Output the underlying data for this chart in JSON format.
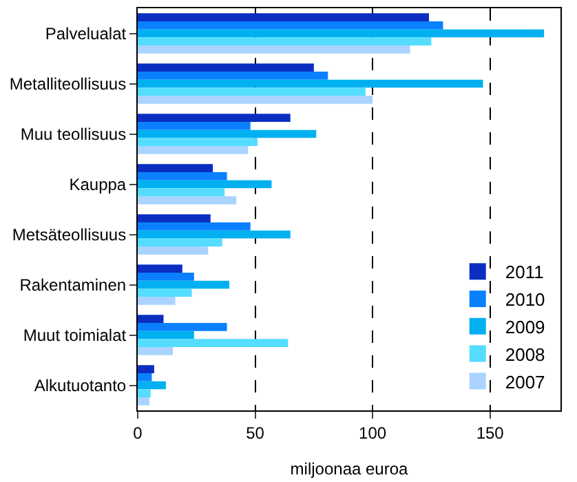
{
  "chart_data": {
    "type": "bar",
    "orientation": "horizontal",
    "xlabel": "miljoonaa euroa",
    "categories": [
      "Palvelualat",
      "Metalliteollisuus",
      "Muu teollisuus",
      "Kauppa",
      "Metsäteollisuus",
      "Rakentaminen",
      "Muut toimialat",
      "Alkutuotanto"
    ],
    "series": [
      {
        "name": "2011",
        "color": "#0a2fc0",
        "values": [
          124,
          75,
          65,
          32,
          31,
          19,
          11,
          7
        ]
      },
      {
        "name": "2010",
        "color": "#0a80ff",
        "values": [
          130,
          81,
          48,
          38,
          48,
          24,
          38,
          6
        ]
      },
      {
        "name": "2009",
        "color": "#00b0f0",
        "values": [
          173,
          147,
          76,
          57,
          65,
          39,
          24,
          12
        ]
      },
      {
        "name": "2008",
        "color": "#55ddff",
        "values": [
          125,
          97,
          51,
          37,
          36,
          23,
          64,
          5.5
        ]
      },
      {
        "name": "2007",
        "color": "#aad4ff",
        "values": [
          116,
          100,
          47,
          42,
          30,
          16,
          15,
          5
        ]
      }
    ],
    "xlim": [
      0,
      180
    ],
    "xticks": [
      0,
      50,
      100,
      150
    ],
    "grid": "x",
    "line_style": "dashed",
    "legend": "bottom right"
  }
}
